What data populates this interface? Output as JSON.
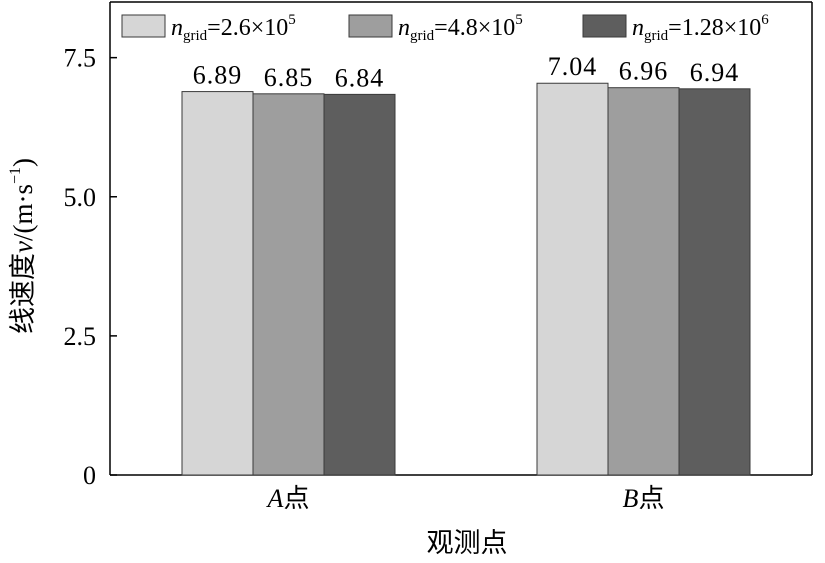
{
  "chart_data": {
    "type": "bar",
    "categories": [
      "A点",
      "B点"
    ],
    "category_letters": [
      "A",
      "B"
    ],
    "category_suffix": "点",
    "series": [
      {
        "name": "n_grid=2.6×10^5",
        "legend": {
          "var": "n",
          "sub": "grid",
          "eq": "=2.6×10",
          "sup": "5"
        },
        "values": [
          6.89,
          7.04
        ],
        "color": "#d6d6d6"
      },
      {
        "name": "n_grid=4.8×10^5",
        "legend": {
          "var": "n",
          "sub": "grid",
          "eq": "=4.8×10",
          "sup": "5"
        },
        "values": [
          6.85,
          6.96
        ],
        "color": "#9e9e9e"
      },
      {
        "name": "n_grid=1.28×10^6",
        "legend": {
          "var": "n",
          "sub": "grid",
          "eq": "=1.28×10",
          "sup": "6"
        },
        "values": [
          6.84,
          6.94
        ],
        "color": "#5e5e5e"
      }
    ],
    "data_labels": [
      [
        "6.89",
        "7.04"
      ],
      [
        "6.85",
        "6.96"
      ],
      [
        "6.84",
        "6.94"
      ]
    ],
    "xlabel": "观测点",
    "ylabel": {
      "main": "线速度",
      "var": "v",
      "unit": "/(m·s",
      "sup": "−1",
      "close": ")"
    },
    "ylim": [
      0,
      8.5
    ],
    "yticks": [
      0,
      2.5,
      5.0,
      7.5
    ],
    "ytick_labels": [
      "0",
      "2.5",
      "5.0",
      "7.5"
    ],
    "legend_position": "top",
    "grid": false
  }
}
